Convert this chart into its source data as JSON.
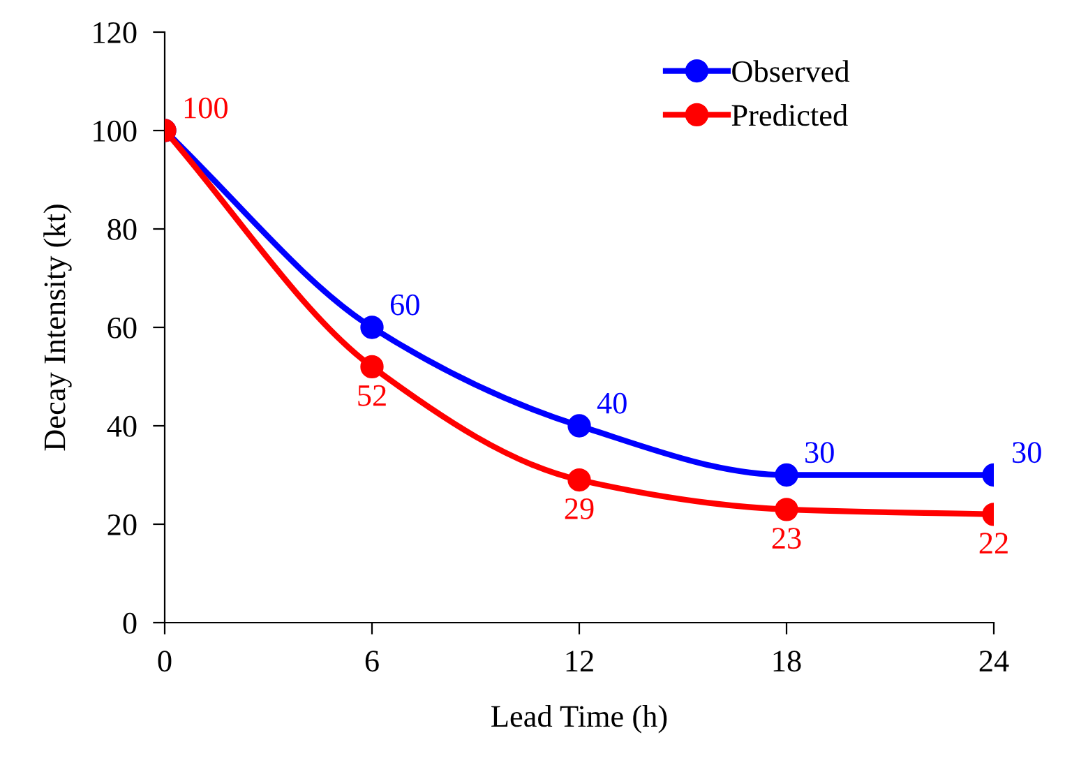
{
  "chart_data": {
    "type": "line",
    "xlabel": "Lead Time (h)",
    "ylabel": "Decay Intensity (kt)",
    "x": [
      0,
      6,
      12,
      18,
      24
    ],
    "series": [
      {
        "name": "Observed",
        "color": "#0000ff",
        "values": [
          100,
          60,
          40,
          30,
          30
        ],
        "value_labels": [
          null,
          "60",
          "40",
          "30",
          "30"
        ]
      },
      {
        "name": "Predicted",
        "color": "#ff0000",
        "values": [
          100,
          52,
          29,
          23,
          22
        ],
        "value_labels": [
          "100",
          "52",
          "29",
          "23",
          "22"
        ]
      }
    ],
    "xlim": [
      0,
      24
    ],
    "xticks": [
      0,
      6,
      12,
      18,
      24
    ],
    "ylim": [
      0,
      120
    ],
    "yticks": [
      0,
      20,
      40,
      60,
      80,
      100,
      120
    ],
    "grid": false,
    "legend": "top right",
    "marker": "circle",
    "line_style": "solid"
  }
}
